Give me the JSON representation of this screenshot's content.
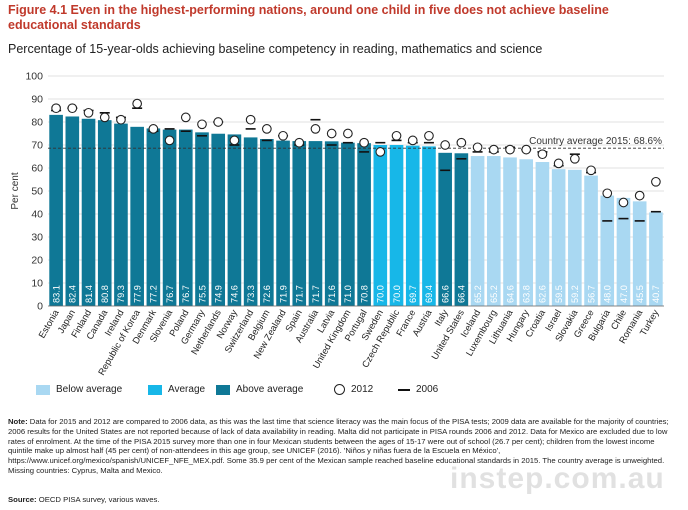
{
  "figure": {
    "title": "Figure 4.1  Even in the highest-performing nations, around one child in five does not achieve baseline educational standards",
    "subtitle": "Percentage of 15-year-olds achieving baseline competency in reading, mathematics and science"
  },
  "chart_data": {
    "type": "bar",
    "ylabel": "Per cent",
    "ylim": [
      0,
      100
    ],
    "yticks": [
      0,
      10,
      20,
      30,
      40,
      50,
      60,
      70,
      80,
      90,
      100
    ],
    "grid": true,
    "reference_line": {
      "value": 68.6,
      "label": "Country average 2015: 68.6%"
    },
    "categories": [
      "Estonia",
      "Japan",
      "Finland",
      "Canada",
      "Ireland",
      "Republic of Korea",
      "Denmark",
      "Slovenia",
      "Poland",
      "Germany",
      "Netherlands",
      "Norway",
      "Switzerland",
      "Belgium",
      "New Zealand",
      "Spain",
      "Australia",
      "Latvia",
      "United Kingdom",
      "Portugal",
      "Sweden",
      "Czech Republic",
      "France",
      "Austria",
      "Italy",
      "United States",
      "Iceland",
      "Luxembourg",
      "Lithuania",
      "Hungary",
      "Croatia",
      "Israel",
      "Slovakia",
      "Greece",
      "Bulgaria",
      "Chile",
      "Romania",
      "Turkey"
    ],
    "value_labels": [
      "83.1",
      "82.4",
      "81.4",
      "80.8",
      "79.3",
      "77.9",
      "77.2",
      "76.7",
      "76.7",
      "75.5",
      "74.9",
      "74.6",
      "73.3",
      "72.6",
      "71.9",
      "71.7",
      "71.7",
      "71.6",
      "71.0",
      "70.8",
      "70.0",
      "70.0",
      "69.7",
      "69.4",
      "66.6",
      "66.4",
      "65.2",
      "65.2",
      "64.6",
      "63.8",
      "62.6",
      "59.5",
      "59.2",
      "56.7",
      "48.0",
      "47.0",
      "45.5",
      "40.7"
    ],
    "series": [
      {
        "name": "2015",
        "values": [
          83.1,
          82.4,
          81.4,
          80.8,
          79.3,
          77.9,
          77.2,
          76.7,
          76.7,
          75.5,
          74.9,
          74.6,
          73.3,
          72.6,
          71.9,
          71.7,
          71.7,
          71.6,
          71.0,
          70.8,
          70.0,
          70.0,
          69.7,
          69.4,
          66.6,
          66.4,
          65.2,
          65.2,
          64.6,
          63.8,
          62.6,
          59.5,
          59.2,
          56.7,
          48.0,
          47.0,
          45.5,
          40.7
        ]
      },
      {
        "name": "2012",
        "values": [
          86,
          86,
          84,
          82,
          81,
          88,
          77,
          72,
          82,
          79,
          80,
          72,
          81,
          77,
          74,
          71,
          77,
          75,
          75,
          71,
          67,
          74,
          72,
          74,
          70,
          71,
          69,
          68,
          68,
          68,
          66,
          62,
          64,
          59,
          49,
          45,
          48,
          54
        ]
      },
      {
        "name": "2006",
        "values": [
          85,
          86,
          85,
          84,
          82,
          86,
          76,
          77,
          76,
          74,
          80,
          70,
          77,
          72,
          74,
          70,
          81,
          70,
          71,
          67,
          71,
          72,
          71,
          71,
          59,
          64,
          67,
          67,
          69,
          68,
          67,
          61,
          66,
          58,
          37,
          38,
          37,
          41
        ]
      }
    ],
    "categories_group": [
      "above",
      "above",
      "above",
      "above",
      "above",
      "above",
      "above",
      "above",
      "above",
      "above",
      "above",
      "above",
      "above",
      "above",
      "above",
      "above",
      "above",
      "above",
      "above",
      "above",
      "average",
      "average",
      "average",
      "average",
      "above",
      "above",
      "below",
      "below",
      "below",
      "below",
      "below",
      "below",
      "below",
      "below",
      "below",
      "below",
      "below",
      "below"
    ],
    "colors": {
      "below": "#a9d8f2",
      "average": "#17b7e8",
      "above": "#0f7896",
      "marker_2012": "#222222",
      "marker_2006": "#111111"
    }
  },
  "legend": {
    "below": "Below average",
    "average": "Average",
    "above": "Above average",
    "y2012": "2012",
    "y2006": "2006"
  },
  "note": {
    "label": "Note:",
    "text": " Data for 2015 and 2012 are compared to 2006 data, as this was the last time that science literacy was the main focus of the PISA tests; 2009 data are available for the majority of countries; 2006 results for the United States are not reported because of lack of data availability in reading. Malta did not participate in PISA rounds 2006 and 2012. Data for Mexico are excluded due to low rates of enrolment. At the time of the PISA 2015 survey more than one in four Mexican students between the ages of 15-17 were out of school (26.7 per cent); children from the lowest income quintile make up almost half (45 per cent) of non-attendees in this age group, see UNICEF (2016). 'Niños y niñas fuera de la Escuela en México', https://www.unicef.org/mexico/spanish/UNICEF_NFE_MEX.pdf. Some 35.9 per cent of the Mexican sample reached baseline educational standards in 2015. The country average is unweighted. Missing countries: Cyprus, Malta and Mexico."
  },
  "source": {
    "label": "Source:",
    "text": " OECD PISA survey, various waves."
  },
  "watermark": "instep.com.au"
}
